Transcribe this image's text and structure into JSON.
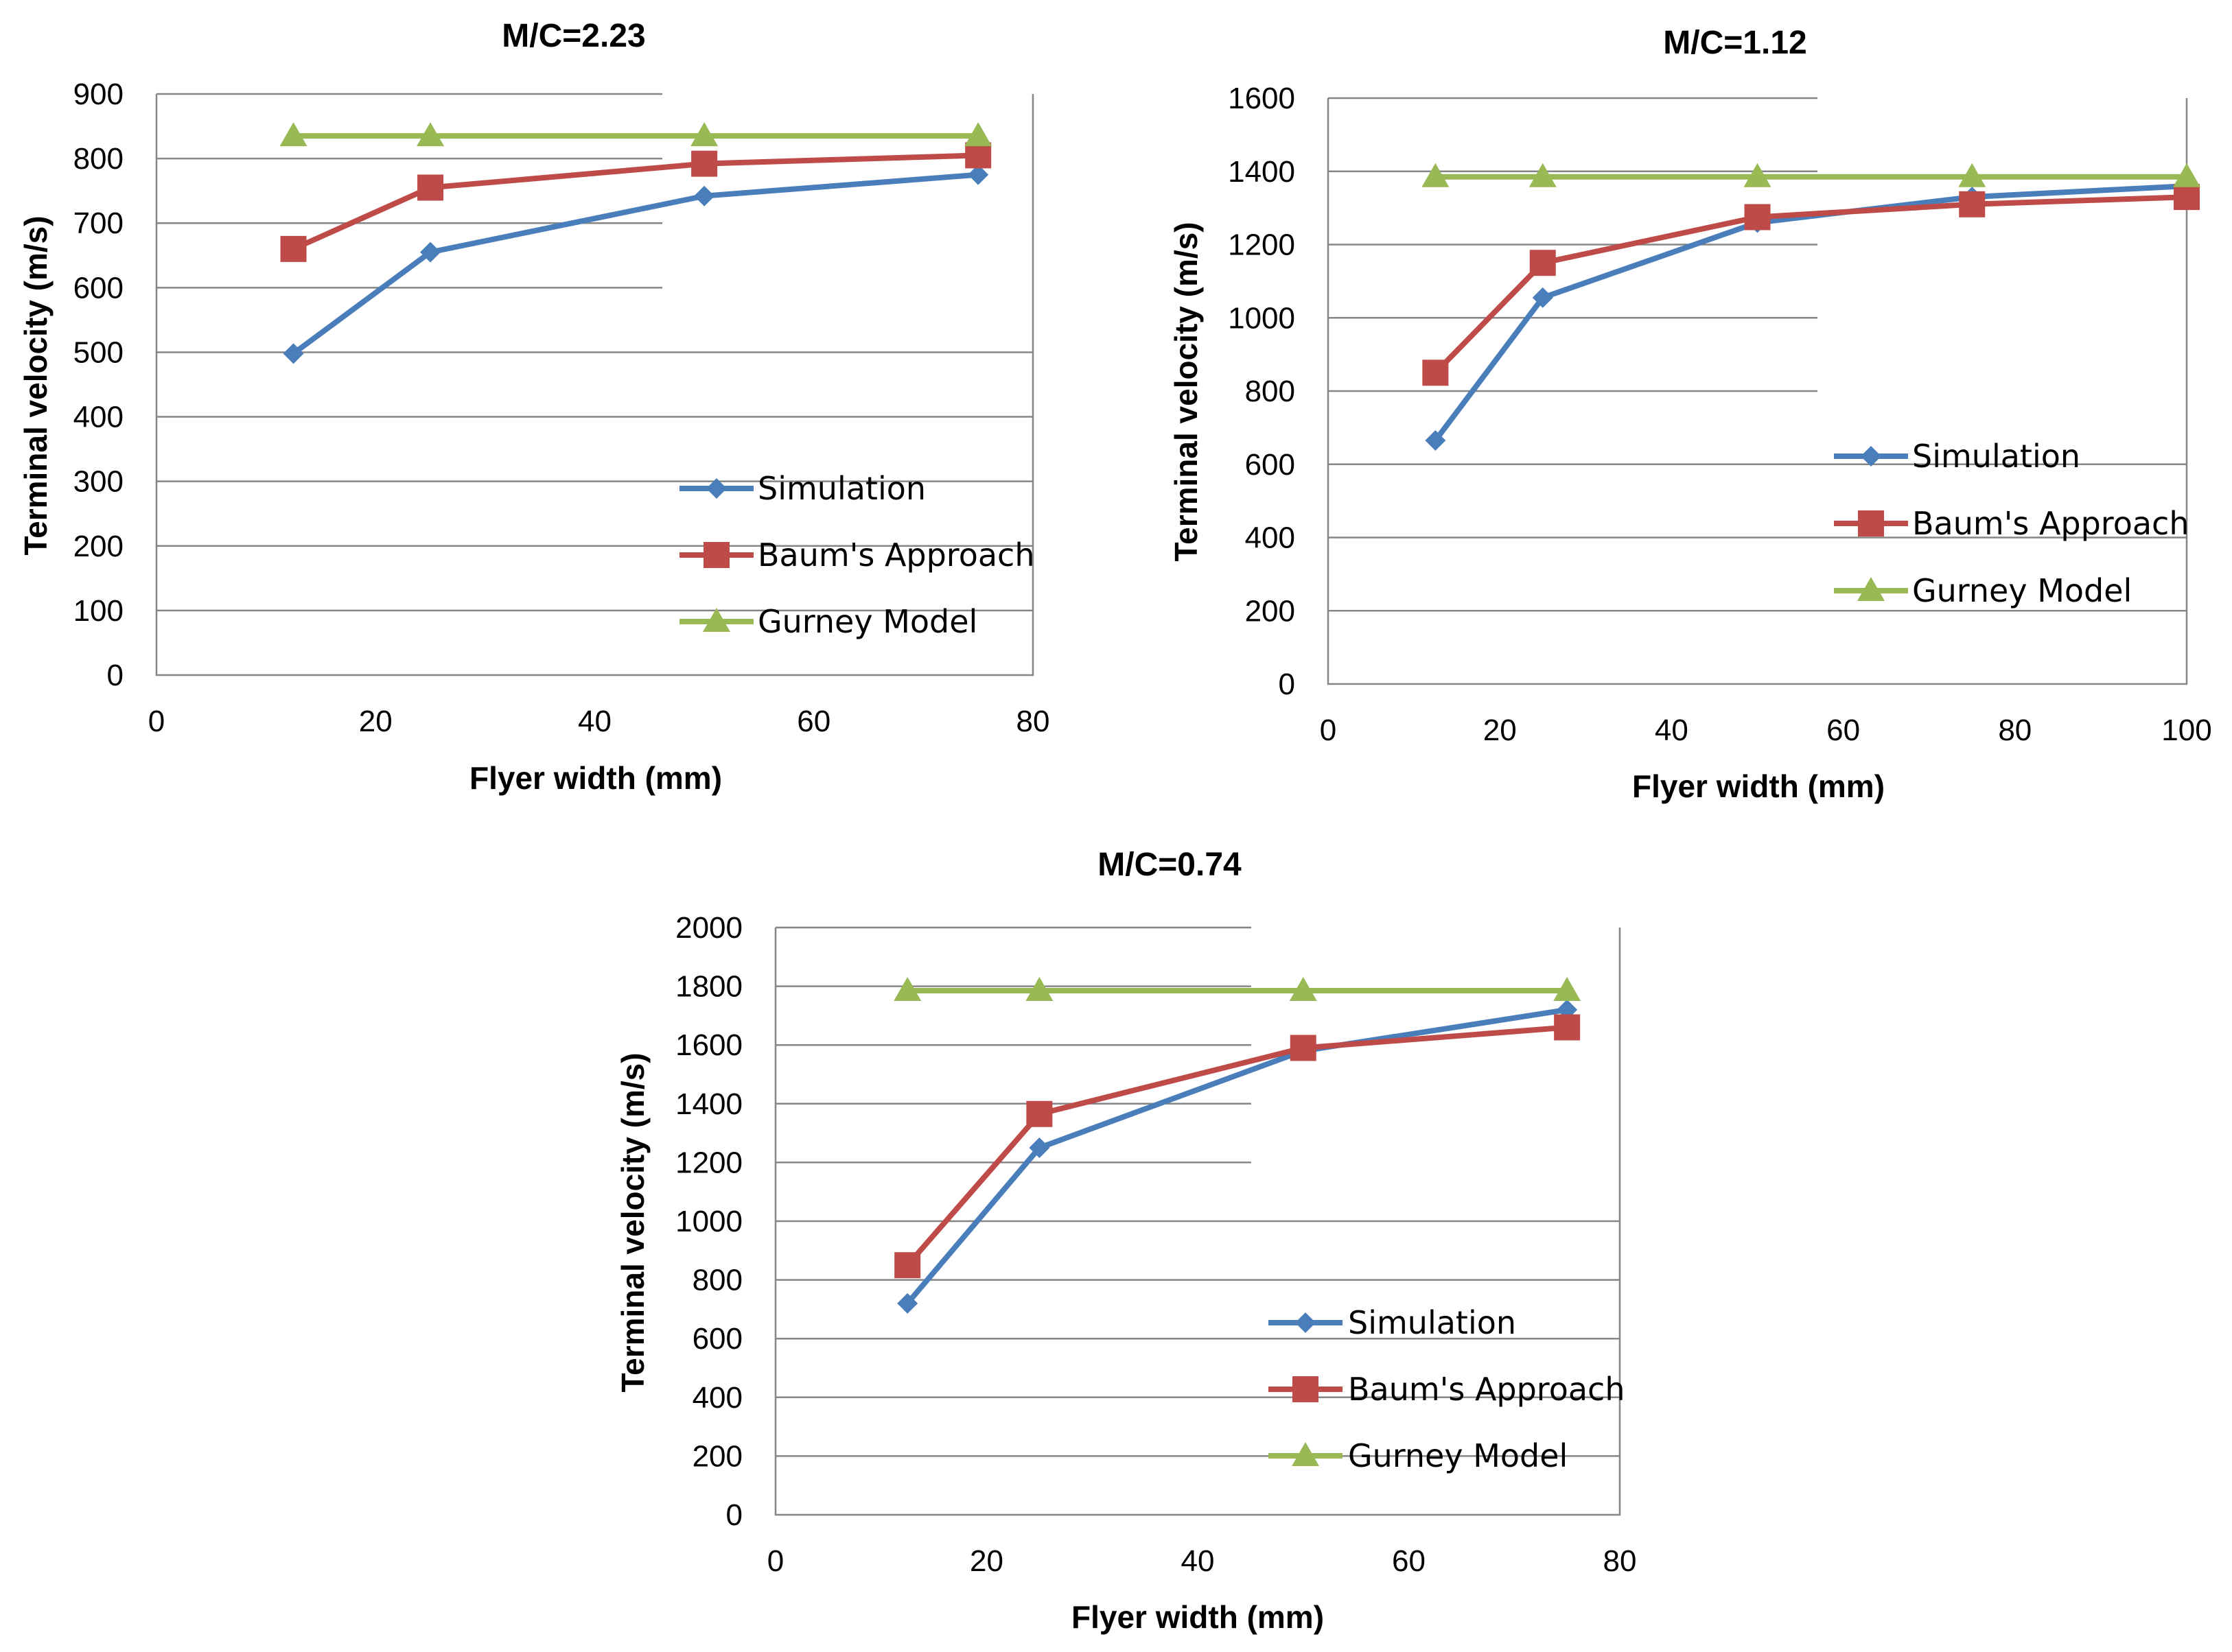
{
  "chart_data": [
    {
      "type": "line",
      "title": "M/C=2.23",
      "xlabel": "Flyer width (mm)",
      "ylabel": "Terminal velocity (m/s)",
      "xlim": [
        0,
        80
      ],
      "ylim": [
        0,
        900
      ],
      "x_ticks": [
        "0",
        "20",
        "40",
        "60",
        "80"
      ],
      "y_ticks": [
        "0",
        "100",
        "200",
        "300",
        "400",
        "500",
        "600",
        "700",
        "800",
        "900"
      ],
      "grid": true,
      "legend_position": "bottom-right",
      "x": [
        12.5,
        25,
        50,
        75
      ],
      "series": [
        {
          "name": "Simulation",
          "marker": "diamond",
          "color": "#4a7ebb",
          "values": [
            498,
            655,
            742,
            775
          ]
        },
        {
          "name": "Baum's Approach",
          "marker": "square",
          "color": "#be4b48",
          "values": [
            660,
            755,
            792,
            805
          ]
        },
        {
          "name": "Gurney Model",
          "marker": "triangle",
          "color": "#98b954",
          "values": [
            835,
            835,
            835,
            835
          ]
        }
      ]
    },
    {
      "type": "line",
      "title": "M/C=1.12",
      "xlabel": "Flyer width (mm)",
      "ylabel": "Terminal velocity (m/s)",
      "xlim": [
        0,
        100
      ],
      "ylim": [
        0,
        1600
      ],
      "x_ticks": [
        "0",
        "20",
        "40",
        "60",
        "80",
        "100"
      ],
      "y_ticks": [
        "0",
        "200",
        "400",
        "600",
        "800",
        "1000",
        "1200",
        "1400",
        "1600"
      ],
      "grid": true,
      "legend_position": "right",
      "x": [
        12.5,
        25,
        50,
        75,
        100
      ],
      "series": [
        {
          "name": "Simulation",
          "marker": "diamond",
          "color": "#4a7ebb",
          "values": [
            665,
            1055,
            1260,
            1330,
            1360
          ]
        },
        {
          "name": "Baum's Approach",
          "marker": "square",
          "color": "#be4b48",
          "values": [
            850,
            1150,
            1275,
            1310,
            1330
          ]
        },
        {
          "name": "Gurney Model",
          "marker": "triangle",
          "color": "#98b954",
          "values": [
            1385,
            1385,
            1385,
            1385,
            1385
          ]
        }
      ]
    },
    {
      "type": "line",
      "title": "M/C=0.74",
      "xlabel": "Flyer width (mm)",
      "ylabel": "Terminal velocity (m/s)",
      "xlim": [
        0,
        80
      ],
      "ylim": [
        0,
        2000
      ],
      "x_ticks": [
        "0",
        "20",
        "40",
        "60",
        "80"
      ],
      "y_ticks": [
        "0",
        "200",
        "400",
        "600",
        "800",
        "1000",
        "1200",
        "1400",
        "1600",
        "1800",
        "2000"
      ],
      "grid": true,
      "legend_position": "bottom-right",
      "x": [
        12.5,
        25,
        50,
        75
      ],
      "series": [
        {
          "name": "Simulation",
          "marker": "diamond",
          "color": "#4a7ebb",
          "values": [
            720,
            1250,
            1580,
            1720
          ]
        },
        {
          "name": "Baum's Approach",
          "marker": "square",
          "color": "#be4b48",
          "values": [
            850,
            1365,
            1590,
            1660
          ]
        },
        {
          "name": "Gurney Model",
          "marker": "triangle",
          "color": "#98b954",
          "values": [
            1785,
            1785,
            1785,
            1785
          ]
        }
      ]
    }
  ]
}
